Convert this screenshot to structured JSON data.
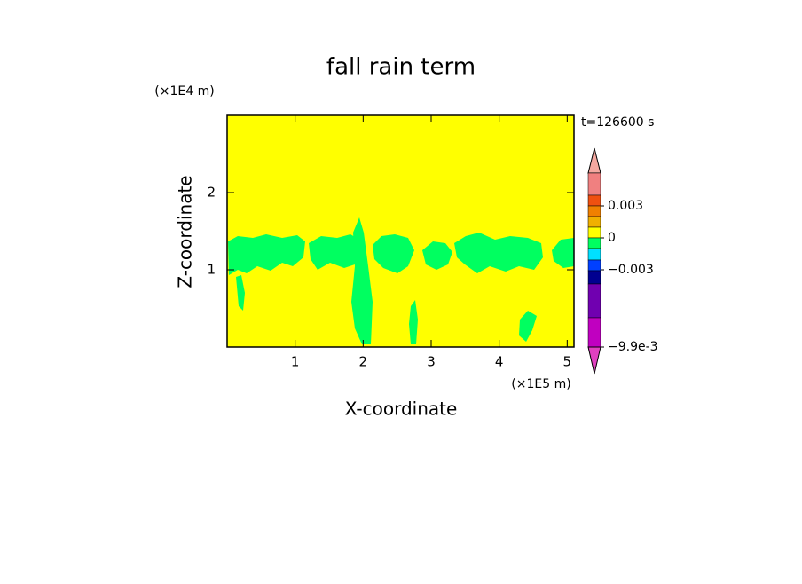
{
  "chart_data": {
    "type": "contour",
    "title": "fall rain term",
    "xlabel": "X-coordinate",
    "ylabel": "Z-coordinate",
    "x_unit": "(×1E5 m)",
    "y_unit": "(×1E4 m)",
    "time_label": "t=126600 s",
    "xlim": [
      0,
      5.1
    ],
    "ylim": [
      0,
      3
    ],
    "xticks": [
      1,
      2,
      3,
      4,
      5
    ],
    "yticks": [
      1,
      2
    ],
    "background_color": "#ffff00",
    "contour_color": "#00ff60",
    "colorbar": {
      "colors": [
        "#f4a8a0",
        "#f08080",
        "#f05010",
        "#f08000",
        "#f0b000",
        "#ffff00",
        "#00ff60",
        "#00e0ff",
        "#0040ff",
        "#000090",
        "#7000b0",
        "#c000c0",
        "#e040c0"
      ],
      "ticks": [
        {
          "value": 0.003,
          "label": "0.003"
        },
        0,
        {
          "value": -0.003,
          "label": "−0.003"
        },
        {
          "value": -0.0099,
          "label": "−9.9e-3"
        }
      ]
    }
  }
}
